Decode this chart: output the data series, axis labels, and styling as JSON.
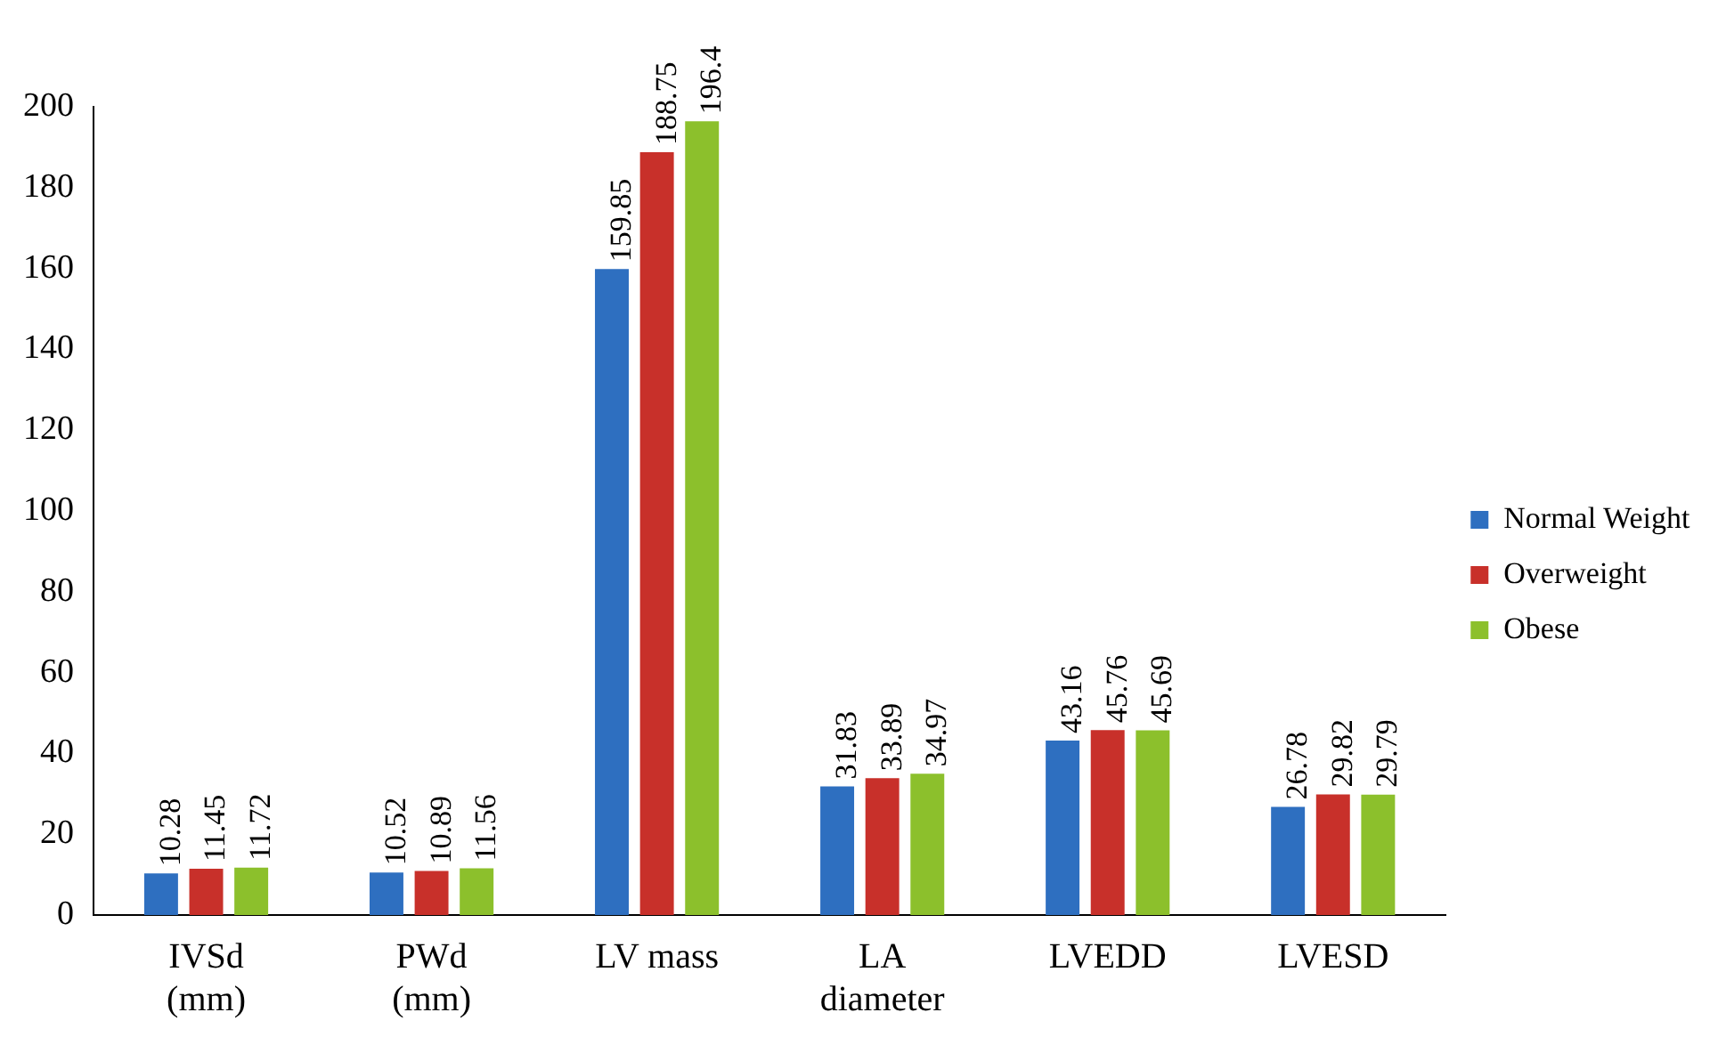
{
  "chart_data": {
    "type": "bar",
    "categories": [
      "IVSd\n(mm)",
      "PWd\n(mm)",
      "LV mass",
      "LA\ndiameter",
      "LVEDD",
      "LVESD"
    ],
    "series": [
      {
        "name": "Normal Weight",
        "color": "#2e6fc0",
        "values": [
          10.28,
          10.52,
          159.85,
          31.83,
          43.16,
          26.78
        ]
      },
      {
        "name": "Overweight",
        "color": "#c8302a",
        "values": [
          11.45,
          10.89,
          188.75,
          33.89,
          45.76,
          29.82
        ]
      },
      {
        "name": "Obese",
        "color": "#8cc02c",
        "values": [
          11.72,
          11.56,
          196.4,
          34.97,
          45.69,
          29.79
        ]
      }
    ],
    "ylim": [
      0,
      200
    ],
    "yticks": [
      0,
      20,
      40,
      60,
      80,
      100,
      120,
      140,
      160,
      180,
      200
    ],
    "grid": false,
    "legend": "right",
    "data_labels": true
  }
}
